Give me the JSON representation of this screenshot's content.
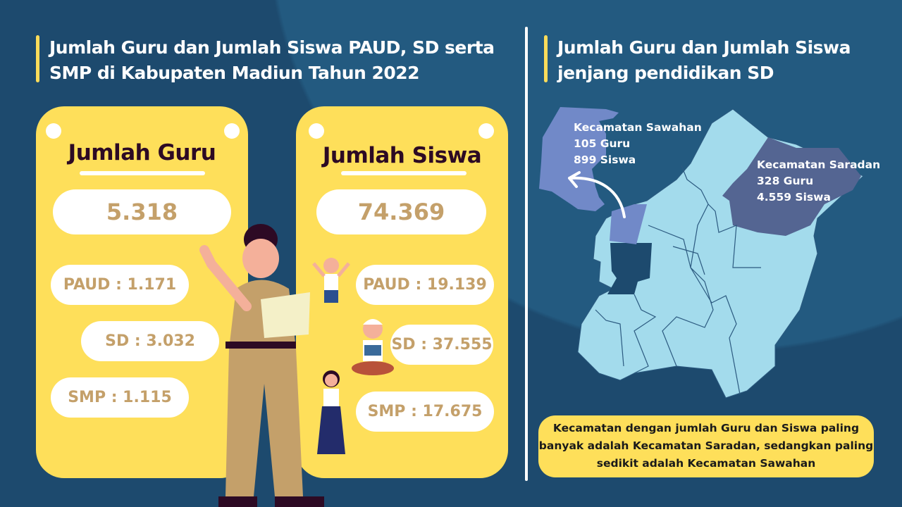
{
  "left": {
    "title": "Jumlah Guru dan Jumlah Siswa PAUD, SD serta SMP di Kabupaten Madiun Tahun 2022",
    "guru": {
      "heading": "Jumlah Guru",
      "total": "5.318",
      "paud": "PAUD : 1.171",
      "sd": "SD : 3.032",
      "smp": "SMP : 1.115"
    },
    "siswa": {
      "heading": "Jumlah Siswa",
      "total": "74.369",
      "paud": "PAUD : 19.139",
      "sd": "SD : 37.555",
      "smp": "SMP : 17.675"
    }
  },
  "right": {
    "title": "Jumlah Guru dan Jumlah Siswa jenjang pendidikan SD",
    "sawahan": {
      "name": "Kecamatan Sawahan",
      "guru": "105 Guru",
      "siswa": "899 Siswa"
    },
    "saradan": {
      "name": "Kecamatan Saradan",
      "guru": "328 Guru",
      "siswa": "4.559 Siswa"
    },
    "note": "Kecamatan dengan jumlah Guru dan Siswa paling banyak adalah Kecamatan Saradan, sedangkan paling sedikit adalah Kecamatan Sawahan"
  },
  "colors": {
    "background": "#1d4a6e",
    "card": "#fedf5a",
    "number": "#c4a06a",
    "map": "#a3dbec",
    "sawahan": "#7189c8",
    "saradan": "#546592"
  }
}
